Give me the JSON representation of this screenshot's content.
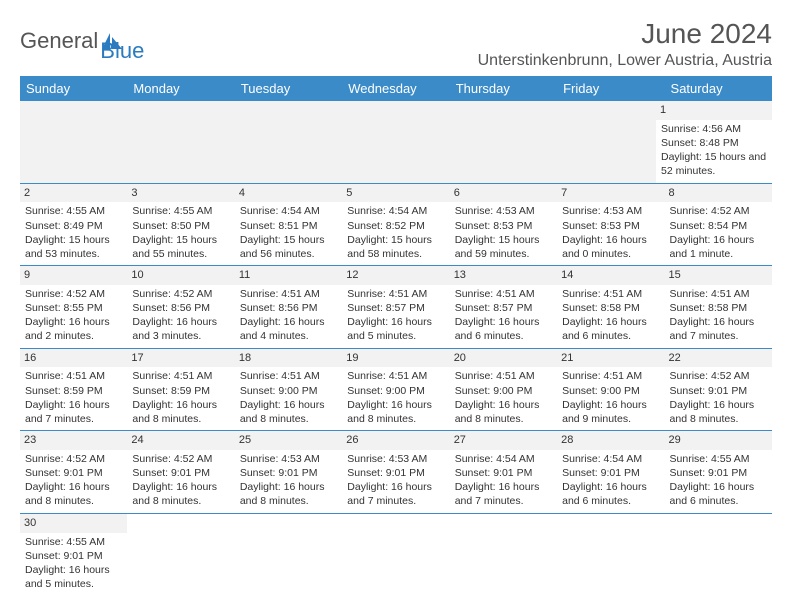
{
  "logo": {
    "text1": "General",
    "text2": "Blue"
  },
  "title": "June 2024",
  "subtitle": "Unterstinkenbrunn, Lower Austria, Austria",
  "header_bg": "#3b8bc9",
  "dow": [
    "Sunday",
    "Monday",
    "Tuesday",
    "Wednesday",
    "Thursday",
    "Friday",
    "Saturday"
  ],
  "weeks": [
    [
      {
        "blank": true
      },
      {
        "blank": true
      },
      {
        "blank": true
      },
      {
        "blank": true
      },
      {
        "blank": true
      },
      {
        "blank": true
      },
      {
        "num": "1",
        "sunrise": "Sunrise: 4:56 AM",
        "sunset": "Sunset: 8:48 PM",
        "daylight": "Daylight: 15 hours and 52 minutes."
      }
    ],
    [
      {
        "num": "2",
        "sunrise": "Sunrise: 4:55 AM",
        "sunset": "Sunset: 8:49 PM",
        "daylight": "Daylight: 15 hours and 53 minutes."
      },
      {
        "num": "3",
        "sunrise": "Sunrise: 4:55 AM",
        "sunset": "Sunset: 8:50 PM",
        "daylight": "Daylight: 15 hours and 55 minutes."
      },
      {
        "num": "4",
        "sunrise": "Sunrise: 4:54 AM",
        "sunset": "Sunset: 8:51 PM",
        "daylight": "Daylight: 15 hours and 56 minutes."
      },
      {
        "num": "5",
        "sunrise": "Sunrise: 4:54 AM",
        "sunset": "Sunset: 8:52 PM",
        "daylight": "Daylight: 15 hours and 58 minutes."
      },
      {
        "num": "6",
        "sunrise": "Sunrise: 4:53 AM",
        "sunset": "Sunset: 8:53 PM",
        "daylight": "Daylight: 15 hours and 59 minutes."
      },
      {
        "num": "7",
        "sunrise": "Sunrise: 4:53 AM",
        "sunset": "Sunset: 8:53 PM",
        "daylight": "Daylight: 16 hours and 0 minutes."
      },
      {
        "num": "8",
        "sunrise": "Sunrise: 4:52 AM",
        "sunset": "Sunset: 8:54 PM",
        "daylight": "Daylight: 16 hours and 1 minute."
      }
    ],
    [
      {
        "num": "9",
        "sunrise": "Sunrise: 4:52 AM",
        "sunset": "Sunset: 8:55 PM",
        "daylight": "Daylight: 16 hours and 2 minutes."
      },
      {
        "num": "10",
        "sunrise": "Sunrise: 4:52 AM",
        "sunset": "Sunset: 8:56 PM",
        "daylight": "Daylight: 16 hours and 3 minutes."
      },
      {
        "num": "11",
        "sunrise": "Sunrise: 4:51 AM",
        "sunset": "Sunset: 8:56 PM",
        "daylight": "Daylight: 16 hours and 4 minutes."
      },
      {
        "num": "12",
        "sunrise": "Sunrise: 4:51 AM",
        "sunset": "Sunset: 8:57 PM",
        "daylight": "Daylight: 16 hours and 5 minutes."
      },
      {
        "num": "13",
        "sunrise": "Sunrise: 4:51 AM",
        "sunset": "Sunset: 8:57 PM",
        "daylight": "Daylight: 16 hours and 6 minutes."
      },
      {
        "num": "14",
        "sunrise": "Sunrise: 4:51 AM",
        "sunset": "Sunset: 8:58 PM",
        "daylight": "Daylight: 16 hours and 6 minutes."
      },
      {
        "num": "15",
        "sunrise": "Sunrise: 4:51 AM",
        "sunset": "Sunset: 8:58 PM",
        "daylight": "Daylight: 16 hours and 7 minutes."
      }
    ],
    [
      {
        "num": "16",
        "sunrise": "Sunrise: 4:51 AM",
        "sunset": "Sunset: 8:59 PM",
        "daylight": "Daylight: 16 hours and 7 minutes."
      },
      {
        "num": "17",
        "sunrise": "Sunrise: 4:51 AM",
        "sunset": "Sunset: 8:59 PM",
        "daylight": "Daylight: 16 hours and 8 minutes."
      },
      {
        "num": "18",
        "sunrise": "Sunrise: 4:51 AM",
        "sunset": "Sunset: 9:00 PM",
        "daylight": "Daylight: 16 hours and 8 minutes."
      },
      {
        "num": "19",
        "sunrise": "Sunrise: 4:51 AM",
        "sunset": "Sunset: 9:00 PM",
        "daylight": "Daylight: 16 hours and 8 minutes."
      },
      {
        "num": "20",
        "sunrise": "Sunrise: 4:51 AM",
        "sunset": "Sunset: 9:00 PM",
        "daylight": "Daylight: 16 hours and 8 minutes."
      },
      {
        "num": "21",
        "sunrise": "Sunrise: 4:51 AM",
        "sunset": "Sunset: 9:00 PM",
        "daylight": "Daylight: 16 hours and 9 minutes."
      },
      {
        "num": "22",
        "sunrise": "Sunrise: 4:52 AM",
        "sunset": "Sunset: 9:01 PM",
        "daylight": "Daylight: 16 hours and 8 minutes."
      }
    ],
    [
      {
        "num": "23",
        "sunrise": "Sunrise: 4:52 AM",
        "sunset": "Sunset: 9:01 PM",
        "daylight": "Daylight: 16 hours and 8 minutes."
      },
      {
        "num": "24",
        "sunrise": "Sunrise: 4:52 AM",
        "sunset": "Sunset: 9:01 PM",
        "daylight": "Daylight: 16 hours and 8 minutes."
      },
      {
        "num": "25",
        "sunrise": "Sunrise: 4:53 AM",
        "sunset": "Sunset: 9:01 PM",
        "daylight": "Daylight: 16 hours and 8 minutes."
      },
      {
        "num": "26",
        "sunrise": "Sunrise: 4:53 AM",
        "sunset": "Sunset: 9:01 PM",
        "daylight": "Daylight: 16 hours and 7 minutes."
      },
      {
        "num": "27",
        "sunrise": "Sunrise: 4:54 AM",
        "sunset": "Sunset: 9:01 PM",
        "daylight": "Daylight: 16 hours and 7 minutes."
      },
      {
        "num": "28",
        "sunrise": "Sunrise: 4:54 AM",
        "sunset": "Sunset: 9:01 PM",
        "daylight": "Daylight: 16 hours and 6 minutes."
      },
      {
        "num": "29",
        "sunrise": "Sunrise: 4:55 AM",
        "sunset": "Sunset: 9:01 PM",
        "daylight": "Daylight: 16 hours and 6 minutes."
      }
    ],
    [
      {
        "num": "30",
        "sunrise": "Sunrise: 4:55 AM",
        "sunset": "Sunset: 9:01 PM",
        "daylight": "Daylight: 16 hours and 5 minutes."
      },
      {
        "blank": true
      },
      {
        "blank": true
      },
      {
        "blank": true
      },
      {
        "blank": true
      },
      {
        "blank": true
      },
      {
        "blank": true
      }
    ]
  ]
}
